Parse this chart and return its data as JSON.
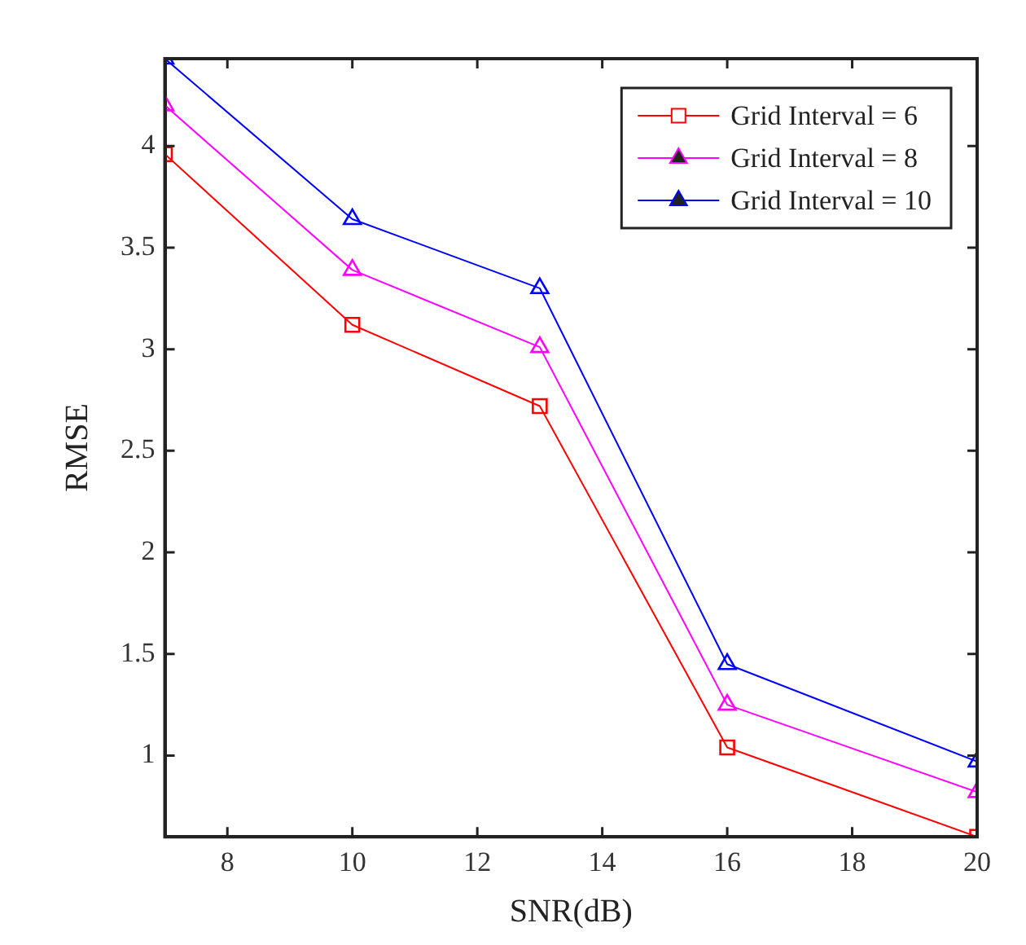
{
  "chart_data": {
    "type": "line",
    "xlabel": "SNR(dB)",
    "ylabel": "RMSE",
    "x": [
      7,
      10,
      13,
      16,
      20
    ],
    "series": [
      {
        "name": "Grid Interval = 6",
        "color": "#ff0000",
        "marker": "square",
        "values": [
          3.96,
          3.12,
          2.72,
          1.04,
          0.6
        ]
      },
      {
        "name": "Grid Interval = 8",
        "color": "#ff00ff",
        "marker": "triangle",
        "values": [
          4.2,
          3.39,
          3.01,
          1.25,
          0.82
        ]
      },
      {
        "name": "Grid Interval = 10",
        "color": "#0000ff",
        "marker": "triangle",
        "values": [
          4.43,
          3.64,
          3.3,
          1.45,
          0.97
        ]
      }
    ],
    "xlim": [
      7,
      20
    ],
    "xticks": [
      8,
      10,
      12,
      14,
      16,
      18,
      20
    ],
    "ylim": [
      0.6,
      4.43
    ],
    "yticks": [
      1,
      1.5,
      2,
      2.5,
      3,
      3.5,
      4
    ],
    "grid": false,
    "legend": "top right",
    "line_style": "solid"
  }
}
